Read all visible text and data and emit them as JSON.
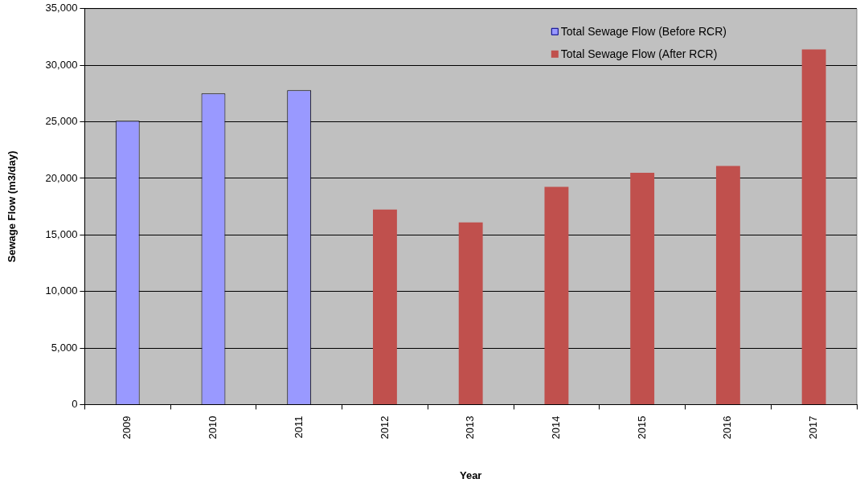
{
  "chart_data": {
    "type": "bar",
    "xlabel": "Year",
    "ylabel": "Sewage Flow (m3/day)",
    "categories": [
      "2009",
      "2010",
      "2011",
      "2012",
      "2013",
      "2014",
      "2015",
      "2016",
      "2017"
    ],
    "series": [
      {
        "name": "Total Sewage Flow (Before RCR)",
        "color": "#9999ff",
        "values": [
          25100,
          27500,
          27800,
          null,
          null,
          null,
          null,
          null,
          null
        ]
      },
      {
        "name": "Total Sewage Flow (After RCR)",
        "color": "#c0504d",
        "values": [
          null,
          null,
          null,
          17250,
          16100,
          19250,
          20500,
          21100,
          31400
        ]
      }
    ],
    "ylim": [
      0,
      35000
    ],
    "yticks": [
      0,
      {
        "value": 5000,
        "label": "5,000"
      },
      {
        "value": 10000,
        "label": "10,000"
      },
      {
        "value": 15000,
        "label": "15,000"
      },
      {
        "value": 20000,
        "label": "20,000"
      },
      {
        "value": 25000,
        "label": "25,000"
      },
      {
        "value": 30000,
        "label": "30,000"
      },
      {
        "value": 35000,
        "label": "35,000"
      }
    ],
    "grid": "y",
    "legend": "top right"
  }
}
